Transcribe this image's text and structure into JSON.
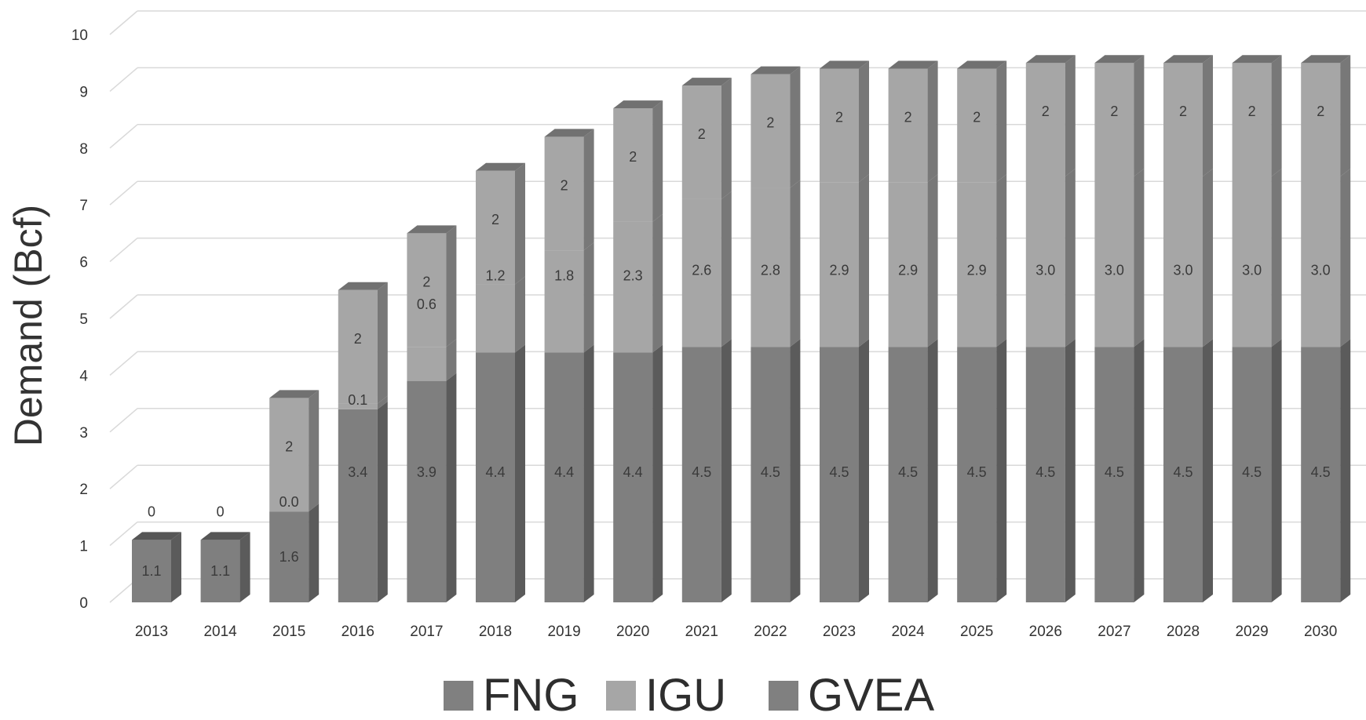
{
  "chart_data": {
    "type": "bar",
    "stacked": true,
    "three_d": true,
    "ylabel": "Demand (Bcf)",
    "xlabel": "",
    "ylim": [
      0,
      10
    ],
    "yticks": [
      0,
      1,
      2,
      3,
      4,
      5,
      6,
      7,
      8,
      9,
      10
    ],
    "grid": true,
    "legend_position": "bottom",
    "categories": [
      "2013",
      "2014",
      "2015",
      "2016",
      "2017",
      "2018",
      "2019",
      "2020",
      "2021",
      "2022",
      "2023",
      "2024",
      "2025",
      "2026",
      "2027",
      "2028",
      "2029",
      "2030"
    ],
    "series": [
      {
        "name": "GVEA",
        "color": "#7f7f7f",
        "values": [
          1.1,
          1.1,
          1.6,
          3.4,
          3.9,
          4.4,
          4.4,
          4.4,
          4.5,
          4.5,
          4.5,
          4.5,
          4.5,
          4.5,
          4.5,
          4.5,
          4.5,
          4.5
        ],
        "labels": [
          "1.1",
          "1.1",
          "1.6",
          "3.4",
          "3.9",
          "4.4",
          "4.4",
          "4.4",
          "4.5",
          "4.5",
          "4.5",
          "4.5",
          "4.5",
          "4.5",
          "4.5",
          "4.5",
          "4.5",
          "4.5"
        ]
      },
      {
        "name": "IGU",
        "color": "#a6a6a6",
        "values": [
          0,
          0,
          0.0,
          0.1,
          0.6,
          1.2,
          1.8,
          2.3,
          2.6,
          2.8,
          2.9,
          2.9,
          2.9,
          3.0,
          3.0,
          3.0,
          3.0,
          3.0
        ],
        "labels": [
          "0",
          "0",
          "0.0",
          "0.1",
          "0.6",
          "1.2",
          "1.8",
          "2.3",
          "2.6",
          "2.8",
          "2.9",
          "2.9",
          "2.9",
          "3.0",
          "3.0",
          "3.0",
          "3.0",
          "3.0"
        ]
      },
      {
        "name": "FNG",
        "color": "#a6a6a6",
        "values": [
          0,
          0,
          2,
          2,
          2,
          2,
          2,
          2,
          2,
          2,
          2,
          2,
          2,
          2,
          2,
          2,
          2,
          2
        ],
        "labels": [
          "",
          "",
          "2",
          "2",
          "2",
          "2",
          "2",
          "2",
          "2",
          "2",
          "2",
          "2",
          "2",
          "2",
          "2",
          "2",
          "2",
          "2"
        ]
      }
    ],
    "legend": [
      {
        "name": "FNG",
        "color": "#808080"
      },
      {
        "name": "IGU",
        "color": "#a6a6a6"
      },
      {
        "name": "GVEA",
        "color": "#808080"
      }
    ]
  }
}
